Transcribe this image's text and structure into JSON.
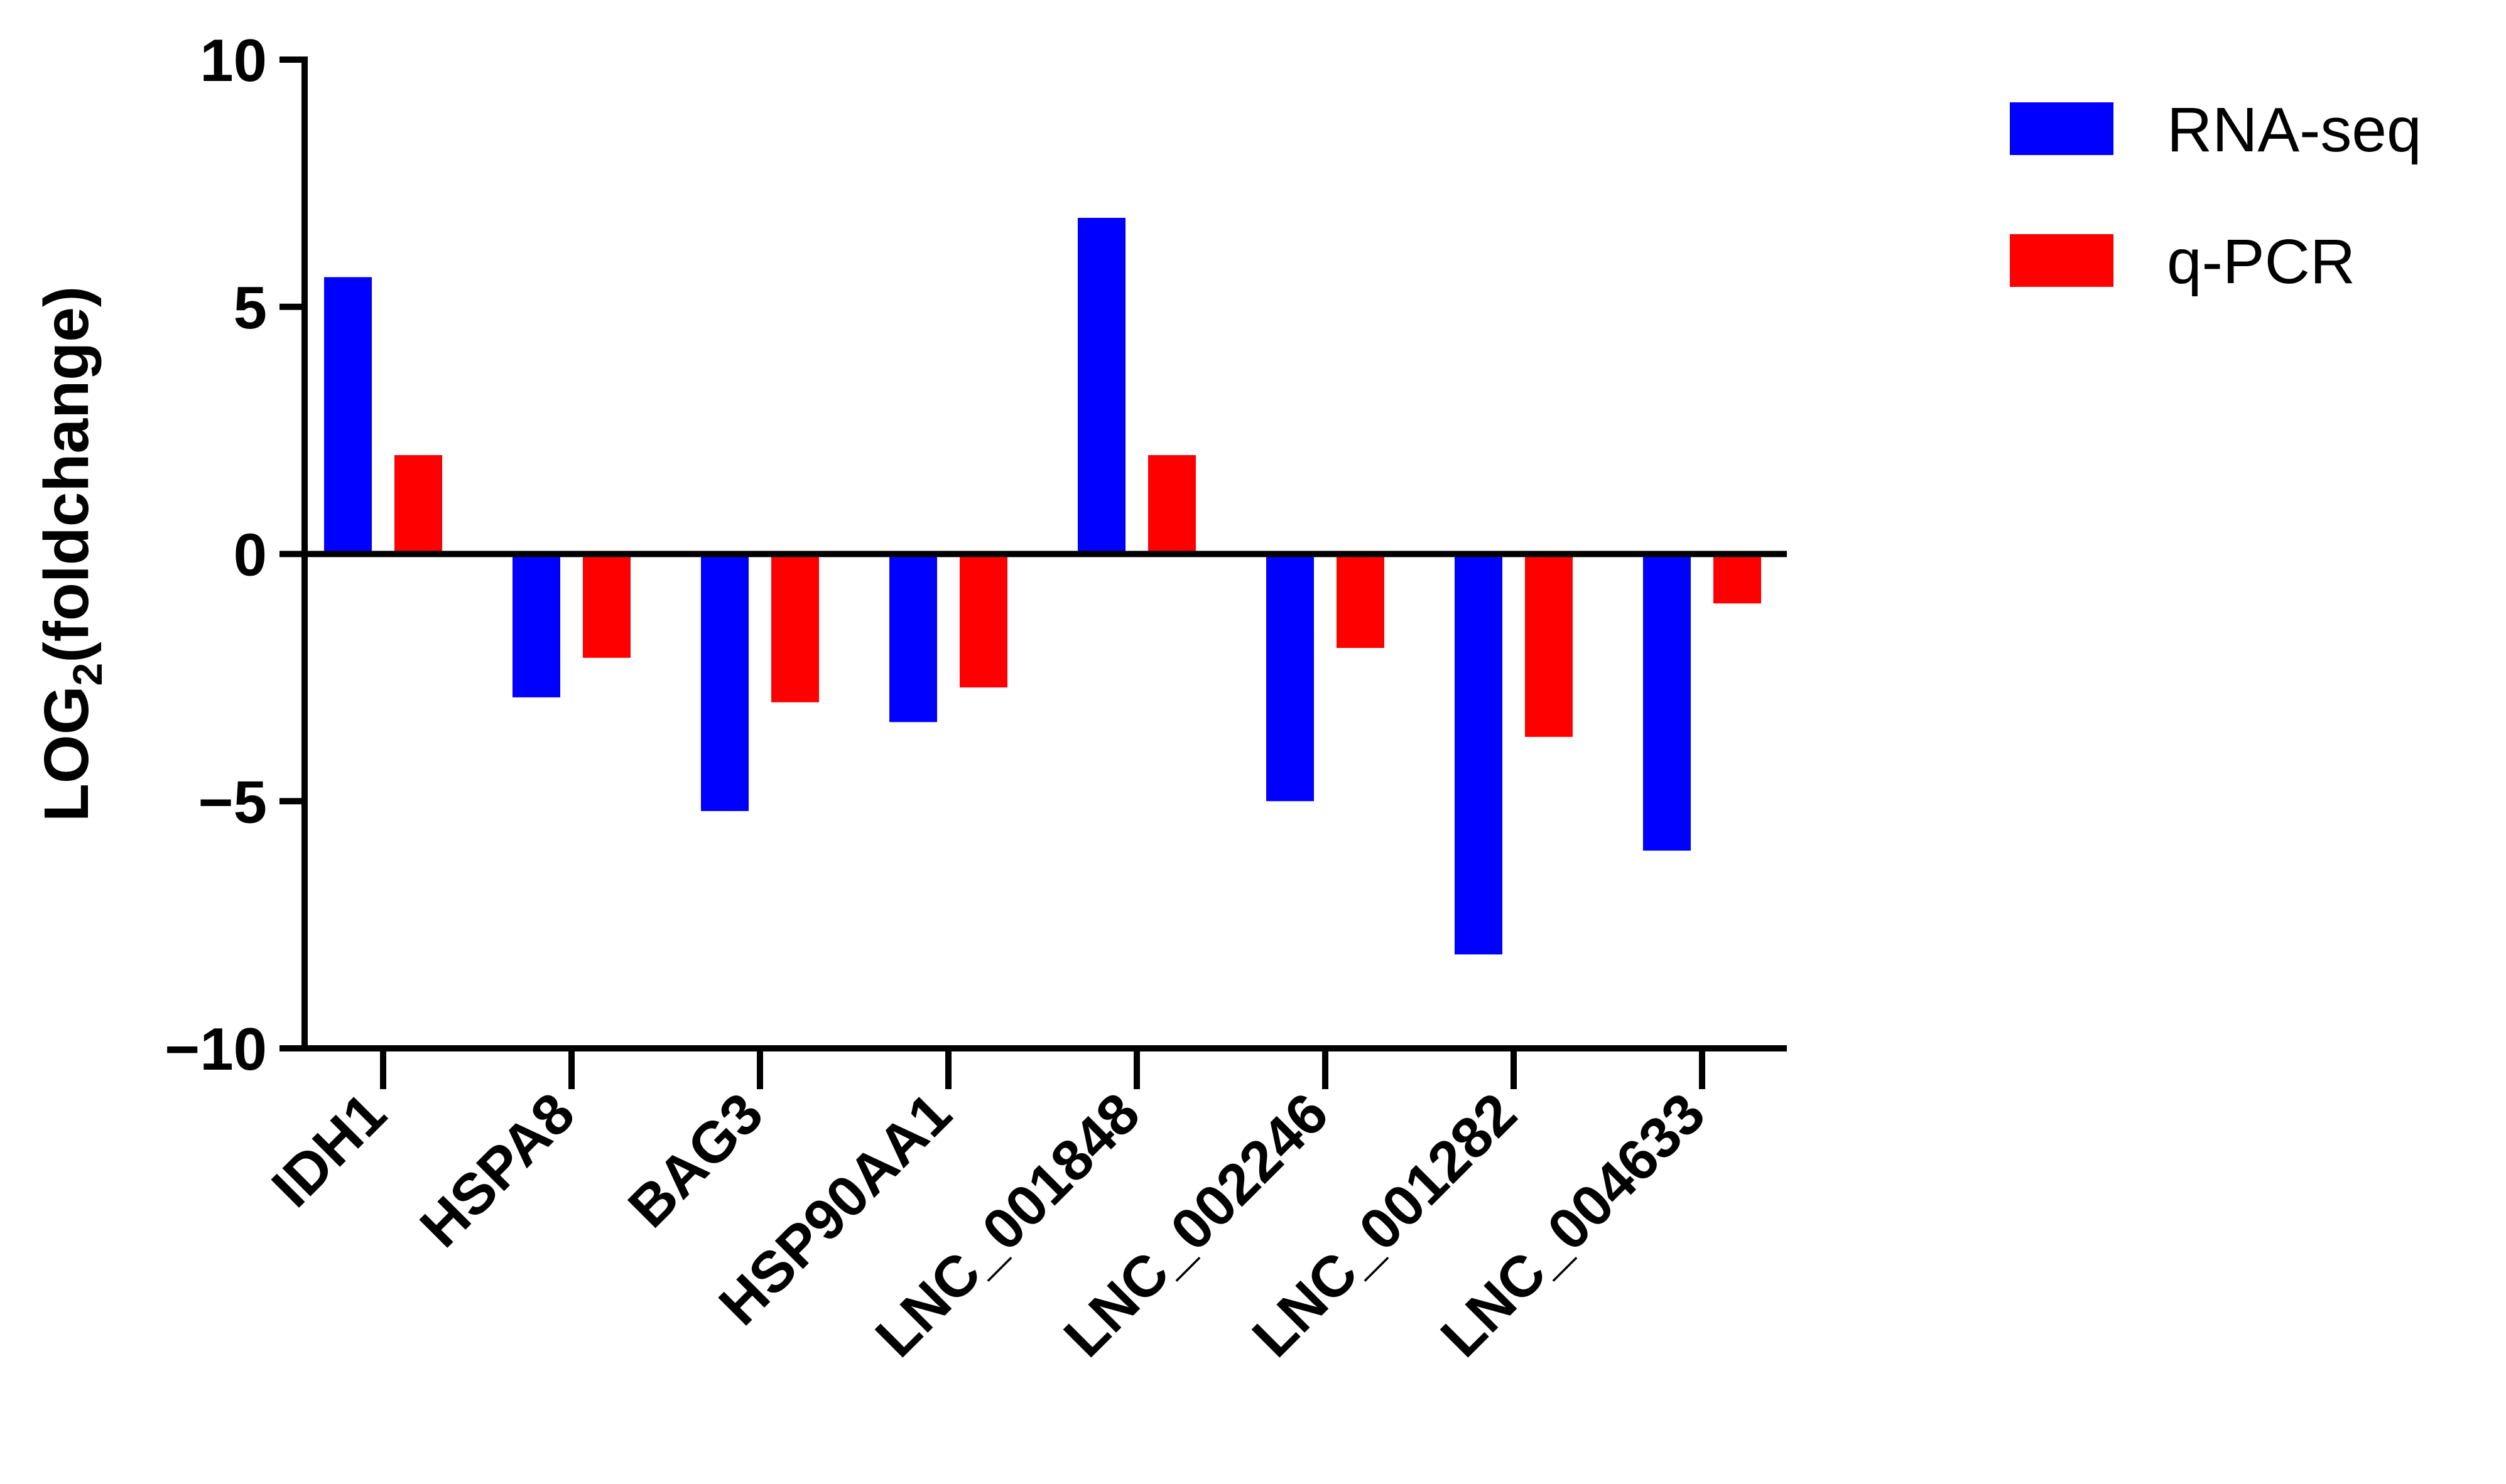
{
  "chart_data": {
    "type": "bar",
    "ylabel_main": "LOG",
    "ylabel_sub": "2",
    "ylabel_rest": "(foldchange)",
    "ylim": [
      -10,
      10
    ],
    "yticks": [
      10,
      5,
      0,
      -5,
      -10
    ],
    "ytick_labels": [
      "10",
      "5",
      "0",
      "−5",
      "−10"
    ],
    "categories": [
      "IDH1",
      "HSPA8",
      "BAG3",
      "HSP90AA1",
      "LNC_001848",
      "LNC_002246",
      "LNC_001282",
      "LNC_004633"
    ],
    "series": [
      {
        "name": "RNA-seq",
        "color": "#0000ff",
        "values": [
          5.6,
          -2.9,
          -5.2,
          -3.4,
          6.8,
          -5.0,
          -8.1,
          -6.0
        ]
      },
      {
        "name": "q-PCR",
        "color": "#ff0000",
        "values": [
          2.0,
          -2.1,
          -3.0,
          -2.7,
          2.0,
          -1.9,
          -3.7,
          -1.0
        ]
      }
    ],
    "legend_position": "top-right",
    "grid": false
  }
}
